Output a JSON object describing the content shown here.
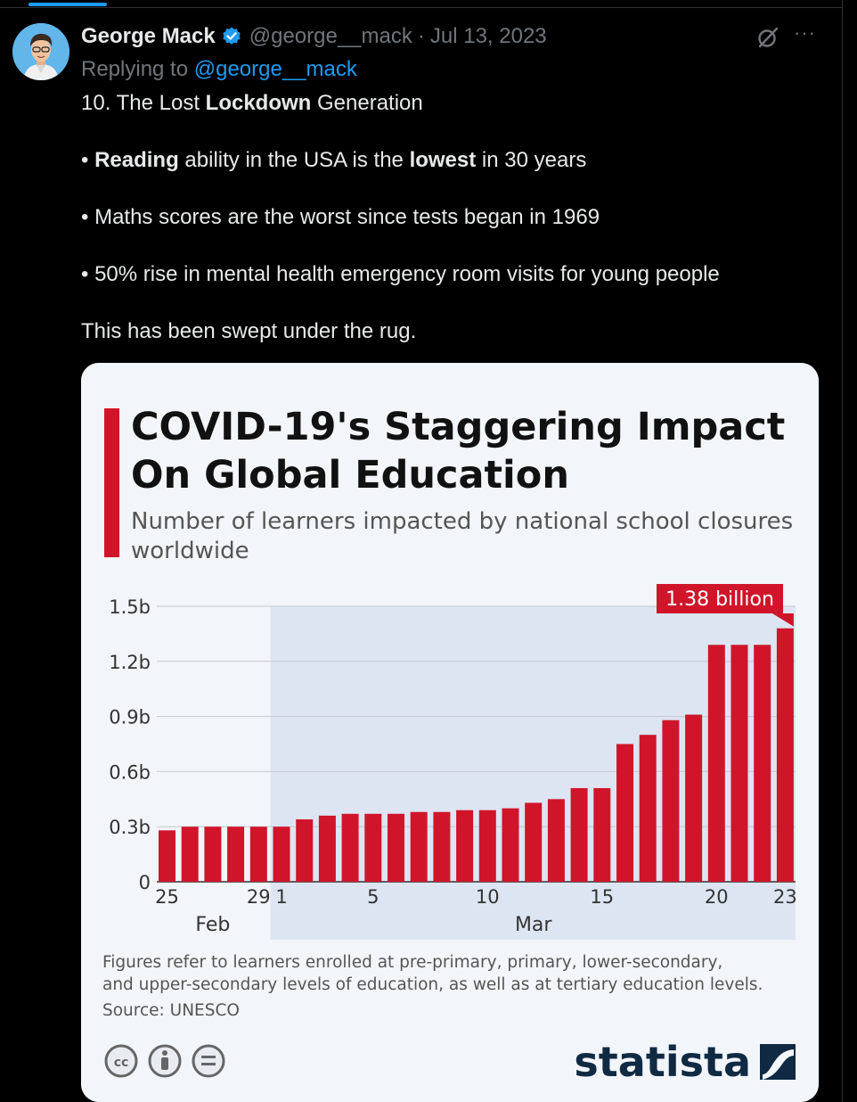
{
  "tweet": {
    "author_name": "George Mack",
    "handle": "@george__mack",
    "separator": "·",
    "date": "Jul 13, 2023",
    "replying_prefix": "Replying to",
    "replying_handle": "@george__mack",
    "more_label": "···",
    "icons": [
      "verified-badge-icon",
      "grok-icon",
      "more-icon"
    ],
    "line1": {
      "a": "10. The Lost ",
      "b": "Lockdown",
      "c": " Generation"
    },
    "line2": {
      "bullet": "• ",
      "a": "Reading",
      "b": " ability in the USA is the ",
      "c": "lowest",
      "d": " in 30 years"
    },
    "line3": "• Maths scores are the worst since tests began in 1969",
    "line4": "• 50% rise in mental health emergency room visits for young people",
    "line5": "This has been swept under the rug."
  },
  "infographic": {
    "footnote_line1": "Figures refer to learners enrolled at pre-primary, primary, lower-secondary,",
    "footnote_line2": "and upper-secondary levels of education, as well as at tertiary education levels.",
    "source": "Source: UNESCO",
    "brand": "statista",
    "license_icons": [
      "cc-icon",
      "by-icon",
      "nd-icon"
    ],
    "highlight_color": "#dde5f2",
    "bar_color": "#d0152a"
  },
  "chart_data": {
    "type": "bar",
    "title_line1": "COVID-19's Staggering Impact",
    "title_line2": "On Global Education",
    "subtitle_line1": "Number of learners impacted by national school closures",
    "subtitle_line2": "worldwide",
    "callout": "1.38 billion",
    "y_unit": "billion learners",
    "ylim": [
      0,
      1.5
    ],
    "y_ticks": [
      0,
      0.3,
      0.6,
      0.9,
      1.2,
      1.5
    ],
    "y_tick_labels": [
      "0",
      "0.3b",
      "0.6b",
      "0.9b",
      "1.2b",
      "1.5b"
    ],
    "categories": [
      "Feb 25",
      "Feb 26",
      "Feb 27",
      "Feb 28",
      "Feb 29",
      "Mar 1",
      "Mar 2",
      "Mar 3",
      "Mar 4",
      "Mar 5",
      "Mar 6",
      "Mar 7",
      "Mar 8",
      "Mar 9",
      "Mar 10",
      "Mar 11",
      "Mar 12",
      "Mar 13",
      "Mar 14",
      "Mar 15",
      "Mar 16",
      "Mar 17",
      "Mar 18",
      "Mar 19",
      "Mar 20",
      "Mar 21",
      "Mar 22",
      "Mar 23"
    ],
    "values": [
      0.28,
      0.3,
      0.3,
      0.3,
      0.3,
      0.3,
      0.34,
      0.36,
      0.37,
      0.37,
      0.37,
      0.38,
      0.38,
      0.39,
      0.39,
      0.4,
      0.43,
      0.45,
      0.51,
      0.51,
      0.75,
      0.8,
      0.88,
      0.91,
      1.29,
      1.29,
      1.29,
      1.38
    ],
    "x_tick_labels": [
      {
        "index": 0,
        "label": "25"
      },
      {
        "index": 4,
        "label": "29"
      },
      {
        "index": 5,
        "label": "1"
      },
      {
        "index": 9,
        "label": "5"
      },
      {
        "index": 14,
        "label": "10"
      },
      {
        "index": 19,
        "label": "15"
      },
      {
        "index": 24,
        "label": "20"
      },
      {
        "index": 27,
        "label": "23"
      }
    ],
    "month_labels": [
      {
        "label": "Feb",
        "from": 0,
        "to": 4
      },
      {
        "label": "Mar",
        "from": 5,
        "to": 27
      }
    ],
    "highlight_from_index": 5,
    "grid": true,
    "legend": "none"
  }
}
